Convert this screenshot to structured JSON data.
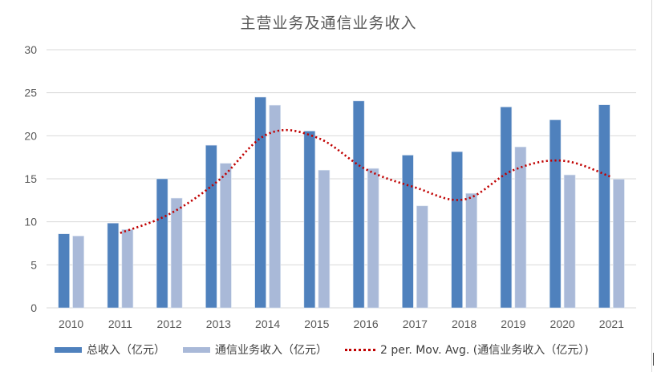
{
  "chart_data": {
    "type": "bar",
    "title": "主营业务及通信业务收入",
    "xlabel": "",
    "ylabel": "",
    "ylim": [
      0,
      30
    ],
    "yticks": [
      0,
      5,
      10,
      15,
      20,
      25,
      30
    ],
    "grid": true,
    "legend_position": "bottom",
    "categories": [
      "2010",
      "2011",
      "2012",
      "2013",
      "2014",
      "2015",
      "2016",
      "2017",
      "2018",
      "2019",
      "2020",
      "2021"
    ],
    "series": [
      {
        "name": "总收入（亿元）",
        "type": "bar",
        "color": "#4F81BD",
        "values": [
          8.6,
          9.85,
          15.0,
          18.9,
          24.5,
          20.55,
          24.05,
          17.75,
          18.15,
          23.35,
          21.85,
          23.6
        ]
      },
      {
        "name": "通信业务收入（亿元）",
        "type": "bar",
        "color": "#A9B9D8",
        "values": [
          8.35,
          9.1,
          12.75,
          16.8,
          23.55,
          16.0,
          16.2,
          11.85,
          13.3,
          18.7,
          15.45,
          14.95
        ]
      },
      {
        "name": "2 per. Mov. Avg. (通信业务收入（亿元）)",
        "type": "line",
        "style": "dotted",
        "color": "#C00000",
        "values": [
          null,
          8.7,
          10.9,
          14.8,
          20.2,
          19.8,
          16.1,
          14.0,
          12.6,
          16.0,
          17.1,
          15.2
        ]
      }
    ]
  },
  "legend": {
    "items": [
      {
        "label": "总收入（亿元）",
        "color": "#4F81BD"
      },
      {
        "label": "通信业务收入（亿元）",
        "color": "#A9B9D8"
      },
      {
        "label": "2 per. Mov. Avg. (通信业务收入（亿元）)",
        "color": "#C00000"
      }
    ]
  }
}
